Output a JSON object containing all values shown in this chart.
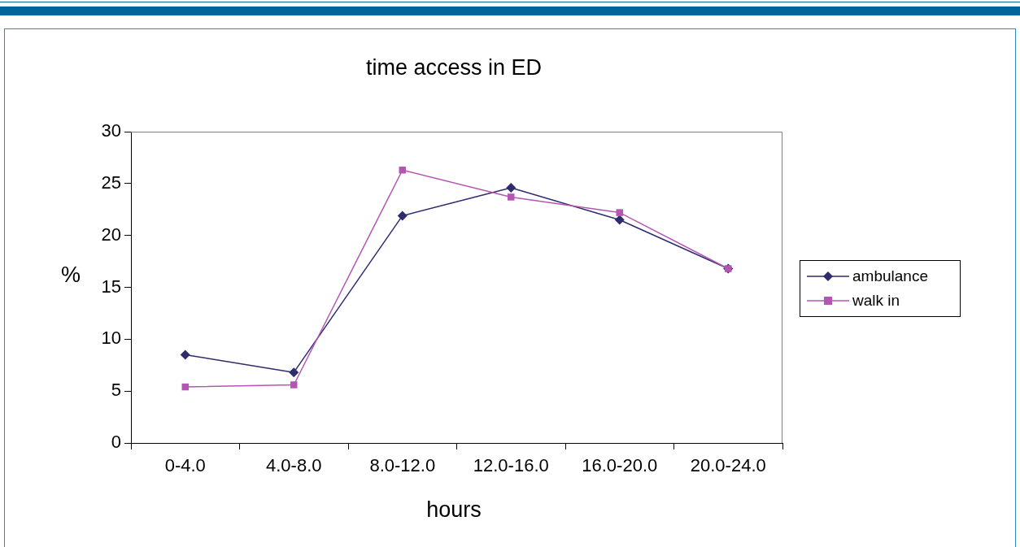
{
  "chart_data": {
    "type": "line",
    "title": "time access in ED",
    "xlabel": "hours",
    "ylabel": "%",
    "categories": [
      "0-4.0",
      "4.0-8.0",
      "8.0-12.0",
      "12.0-16.0",
      "16.0-20.0",
      "20.0-24.0"
    ],
    "series": [
      {
        "name": "ambulance",
        "color": "#2e2b6e",
        "marker": "diamond",
        "values": [
          8.5,
          6.8,
          21.9,
          24.6,
          21.5,
          16.8
        ]
      },
      {
        "name": "walk in",
        "color": "#b455b4",
        "marker": "square",
        "values": [
          5.4,
          5.6,
          26.3,
          23.7,
          22.2,
          16.8
        ]
      }
    ],
    "ylim": [
      0,
      30
    ],
    "yticks": [
      0,
      5,
      10,
      15,
      20,
      25,
      30
    ],
    "grid": false,
    "legend": "right",
    "line_style": "solid"
  }
}
